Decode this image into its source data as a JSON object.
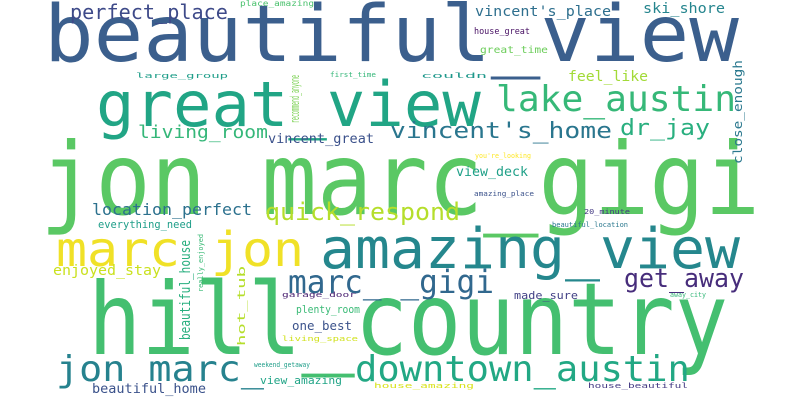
{
  "words": [
    {
      "text": "beautiful_view",
      "color": "#3b5f8d"
    },
    {
      "text": "jon marc_gigi",
      "color": "#5ac864"
    },
    {
      "text": "hill_country",
      "color": "#44bf70"
    },
    {
      "text": "amazing_view",
      "color": "#25878d"
    },
    {
      "text": "great_view",
      "color": "#21a585"
    },
    {
      "text": "marc jon",
      "color": "#f0e127"
    },
    {
      "text": "downtown_austin",
      "color": "#22a884"
    },
    {
      "text": "jon marc_",
      "color": "#26828e"
    },
    {
      "text": "lake_austin",
      "color": "#36b878"
    },
    {
      "text": "marc_ _gigi",
      "color": "#31688e"
    },
    {
      "text": "quick_respond",
      "color": "#b5de2b"
    },
    {
      "text": "vincent's_home",
      "color": "#2a768e"
    },
    {
      "text": "get_away",
      "color": "#472d7b"
    },
    {
      "text": "dr_jay",
      "color": "#29af7f"
    },
    {
      "text": "perfect_place",
      "color": "#3e4a89"
    },
    {
      "text": "living_room",
      "color": "#35b779"
    },
    {
      "text": "location_perfect",
      "color": "#2c718e"
    },
    {
      "text": "vincent's_place",
      "color": "#2e6f8e"
    },
    {
      "text": "ski_shore",
      "color": "#25858e"
    },
    {
      "text": "feel_like",
      "color": "#a2da37"
    },
    {
      "text": "enjoyed_stay",
      "color": "#cae11f"
    },
    {
      "text": "vincent_great",
      "color": "#3b518b"
    },
    {
      "text": "view_deck",
      "color": "#1fa088"
    },
    {
      "text": "beautiful_home",
      "color": "#3b528b"
    },
    {
      "text": "view_amazing",
      "color": "#20a486"
    },
    {
      "text": "one_best",
      "color": "#3b528b"
    },
    {
      "text": "plenty_room",
      "color": "#3aba76"
    },
    {
      "text": "made_sure",
      "color": "#424186"
    },
    {
      "text": "everything_need",
      "color": "#1f9e89"
    },
    {
      "text": "great_time",
      "color": "#6ccd5a"
    },
    {
      "text": "house_great",
      "color": "#471063"
    },
    {
      "text": "place_amazing",
      "color": "#4ac16d"
    },
    {
      "text": "couldn",
      "color": "#1f988b"
    },
    {
      "text": "first_time",
      "color": "#35b779"
    },
    {
      "text": "large_group",
      "color": "#1f9e89"
    },
    {
      "text": "you're_looking",
      "color": "#fde725"
    },
    {
      "text": "amazing_place",
      "color": "#3b528b"
    },
    {
      "text": "20_minute",
      "color": "#443a83"
    },
    {
      "text": "beautiful_location",
      "color": "#2a788e"
    },
    {
      "text": "garage_door",
      "color": "#481f70"
    },
    {
      "text": "living_space",
      "color": "#d0e11c"
    },
    {
      "text": "away_city",
      "color": "#35b779"
    },
    {
      "text": "weekend_getaway",
      "color": "#1f9e89"
    },
    {
      "text": "house_amazing",
      "color": "#d8e219"
    },
    {
      "text": "house_beautiful",
      "color": "#443a83"
    },
    {
      "text": "beautiful_house",
      "color": "#29af7f"
    },
    {
      "text": "hot_tub",
      "color": "#b5de2b"
    },
    {
      "text": "close_enough",
      "color": "#2a788e"
    },
    {
      "text": "recommend_anyone",
      "color": "#7ad151"
    },
    {
      "text": "really_enjoyed",
      "color": "#3aba76"
    }
  ]
}
